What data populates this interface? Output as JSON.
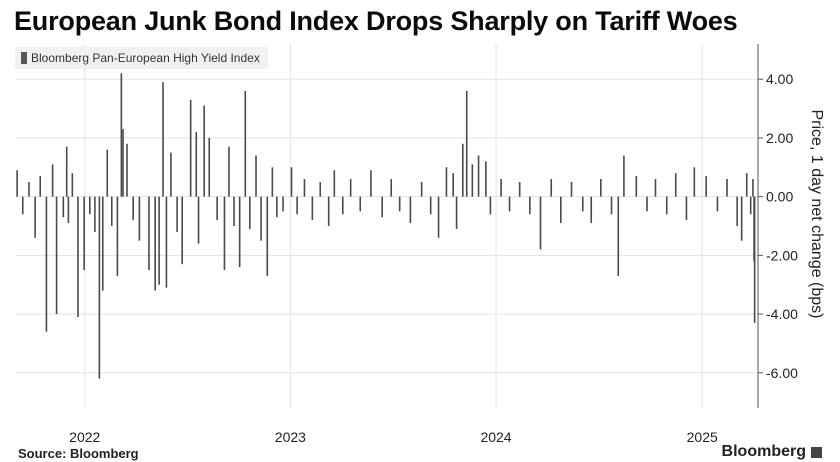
{
  "title": "European Junk Bond Index Drops Sharply on Tariff Woes",
  "source": "Source: Bloomberg",
  "brand": "Bloomberg",
  "colors": {
    "bar": "#4a4a4a",
    "grid": "#e3e3e3",
    "axis": "#555555"
  },
  "chart_data": {
    "type": "bar",
    "legend": [
      "Bloomberg Pan-European High Yield Index"
    ],
    "ylabel": "Price, 1 day net change (bps)",
    "ylim": [
      -7.2,
      5.2
    ],
    "yticks": [
      4,
      2,
      0,
      -2,
      -4,
      -6
    ],
    "ytick_labels": [
      "4.00",
      "2.00",
      "0.00",
      "-2.00",
      "-4.00",
      "-6.00"
    ],
    "xlim": [
      "2021-09-01",
      "2025-04-10"
    ],
    "xticks": [
      {
        "label": "2022",
        "date": "2022-01-01"
      },
      {
        "label": "2023",
        "date": "2023-01-01"
      },
      {
        "label": "2024",
        "date": "2024-01-01"
      },
      {
        "label": "2025",
        "date": "2025-01-01"
      }
    ],
    "grid": true,
    "legend_position": "top-left",
    "series": [
      {
        "name": "Bloomberg Pan-European High Yield Index",
        "points": [
          [
            "2021-09-03",
            0.9
          ],
          [
            "2021-09-13",
            -0.6
          ],
          [
            "2021-09-24",
            0.5
          ],
          [
            "2021-10-05",
            -1.4
          ],
          [
            "2021-10-14",
            0.7
          ],
          [
            "2021-10-25",
            -4.6
          ],
          [
            "2021-11-05",
            1.1
          ],
          [
            "2021-11-12",
            -4.0
          ],
          [
            "2021-11-24",
            -0.7
          ],
          [
            "2021-11-30",
            1.7
          ],
          [
            "2021-12-03",
            -0.9
          ],
          [
            "2021-12-10",
            0.8
          ],
          [
            "2021-12-20",
            -4.1
          ],
          [
            "2021-12-31",
            -2.5
          ],
          [
            "2022-01-10",
            -0.6
          ],
          [
            "2022-01-19",
            -1.2
          ],
          [
            "2022-01-27",
            -6.2
          ],
          [
            "2022-02-02",
            -3.2
          ],
          [
            "2022-02-10",
            1.6
          ],
          [
            "2022-02-18",
            -1.0
          ],
          [
            "2022-02-28",
            -2.7
          ],
          [
            "2022-03-07",
            4.2
          ],
          [
            "2022-03-10",
            2.3
          ],
          [
            "2022-03-17",
            1.8
          ],
          [
            "2022-03-28",
            -0.8
          ],
          [
            "2022-04-08",
            -1.5
          ],
          [
            "2022-04-25",
            -2.5
          ],
          [
            "2022-05-06",
            -3.2
          ],
          [
            "2022-05-13",
            -3.0
          ],
          [
            "2022-05-20",
            3.9
          ],
          [
            "2022-05-26",
            -3.1
          ],
          [
            "2022-06-03",
            1.5
          ],
          [
            "2022-06-14",
            -1.2
          ],
          [
            "2022-06-23",
            -2.3
          ],
          [
            "2022-07-08",
            3.3
          ],
          [
            "2022-07-18",
            2.2
          ],
          [
            "2022-07-22",
            -1.6
          ],
          [
            "2022-08-01",
            3.1
          ],
          [
            "2022-08-10",
            2.0
          ],
          [
            "2022-08-24",
            -0.8
          ],
          [
            "2022-09-06",
            -2.5
          ],
          [
            "2022-09-14",
            1.7
          ],
          [
            "2022-09-23",
            -1.0
          ],
          [
            "2022-10-03",
            -2.4
          ],
          [
            "2022-10-13",
            3.6
          ],
          [
            "2022-10-21",
            -1.1
          ],
          [
            "2022-11-01",
            1.4
          ],
          [
            "2022-11-10",
            -1.5
          ],
          [
            "2022-11-21",
            -2.7
          ],
          [
            "2022-11-30",
            1.0
          ],
          [
            "2022-12-08",
            -0.7
          ],
          [
            "2022-12-19",
            -0.5
          ],
          [
            "2023-01-03",
            1.0
          ],
          [
            "2023-01-13",
            -0.6
          ],
          [
            "2023-01-26",
            0.6
          ],
          [
            "2023-02-09",
            -0.8
          ],
          [
            "2023-02-23",
            0.5
          ],
          [
            "2023-03-10",
            -1.0
          ],
          [
            "2023-03-20",
            0.9
          ],
          [
            "2023-04-04",
            -0.6
          ],
          [
            "2023-04-18",
            0.6
          ],
          [
            "2023-05-05",
            -0.5
          ],
          [
            "2023-05-24",
            0.9
          ],
          [
            "2023-06-13",
            -0.7
          ],
          [
            "2023-06-29",
            0.6
          ],
          [
            "2023-07-14",
            -0.5
          ],
          [
            "2023-08-02",
            -0.9
          ],
          [
            "2023-08-22",
            0.5
          ],
          [
            "2023-09-07",
            -0.6
          ],
          [
            "2023-09-21",
            -1.4
          ],
          [
            "2023-10-05",
            1.0
          ],
          [
            "2023-10-17",
            0.8
          ],
          [
            "2023-10-23",
            -1.1
          ],
          [
            "2023-11-03",
            1.8
          ],
          [
            "2023-11-10",
            3.6
          ],
          [
            "2023-11-20",
            1.1
          ],
          [
            "2023-12-01",
            1.4
          ],
          [
            "2023-12-14",
            1.2
          ],
          [
            "2023-12-22",
            -0.6
          ],
          [
            "2024-01-10",
            0.6
          ],
          [
            "2024-01-25",
            -0.5
          ],
          [
            "2024-02-12",
            0.5
          ],
          [
            "2024-03-01",
            -0.6
          ],
          [
            "2024-03-20",
            -1.8
          ],
          [
            "2024-04-08",
            0.6
          ],
          [
            "2024-04-25",
            -0.9
          ],
          [
            "2024-05-14",
            0.5
          ],
          [
            "2024-06-03",
            -0.5
          ],
          [
            "2024-06-18",
            -0.9
          ],
          [
            "2024-07-05",
            0.6
          ],
          [
            "2024-07-24",
            -0.6
          ],
          [
            "2024-08-05",
            -2.7
          ],
          [
            "2024-08-15",
            1.4
          ],
          [
            "2024-09-06",
            0.7
          ],
          [
            "2024-09-25",
            -0.5
          ],
          [
            "2024-10-10",
            0.6
          ],
          [
            "2024-10-30",
            -0.6
          ],
          [
            "2024-11-15",
            0.8
          ],
          [
            "2024-12-04",
            -0.8
          ],
          [
            "2024-12-18",
            1.0
          ],
          [
            "2025-01-08",
            0.7
          ],
          [
            "2025-01-28",
            -0.5
          ],
          [
            "2025-02-14",
            0.6
          ],
          [
            "2025-03-04",
            -1.0
          ],
          [
            "2025-03-12",
            -1.5
          ],
          [
            "2025-03-21",
            0.8
          ],
          [
            "2025-03-28",
            -0.6
          ],
          [
            "2025-04-01",
            0.6
          ],
          [
            "2025-04-03",
            -2.2
          ],
          [
            "2025-04-04",
            -4.3
          ]
        ]
      }
    ]
  }
}
